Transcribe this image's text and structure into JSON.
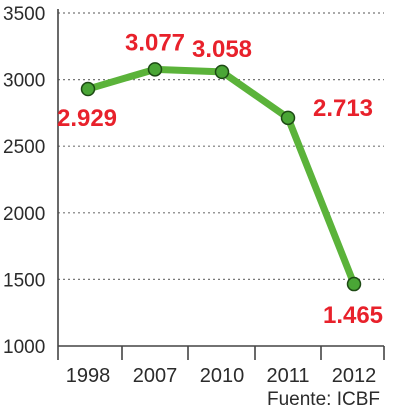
{
  "chart_data": {
    "type": "line",
    "categories": [
      "1998",
      "2007",
      "2010",
      "2011",
      "2012"
    ],
    "values": [
      2929,
      3077,
      3058,
      2713,
      1465
    ],
    "data_labels": [
      "2.929",
      "3.077",
      "3.058",
      "2.713",
      "1.465"
    ],
    "yticks": [
      "1000",
      "1500",
      "2000",
      "2500",
      "3000",
      "3500"
    ],
    "ylim": [
      1000,
      3500
    ],
    "grid": "horizontal dashed",
    "line_color": "#5bb33a",
    "marker_color": "#4aa636",
    "label_color": "#e8212b",
    "source": "Fuente: ICBF"
  }
}
